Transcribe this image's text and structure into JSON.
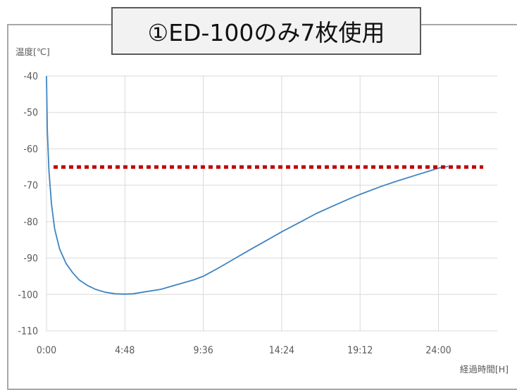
{
  "chart_data": {
    "type": "line",
    "title": "①ED-100のみ7枚使用",
    "xlabel": "経過時間[H]",
    "ylabel": "温度[℃]",
    "x_tick_labels": [
      "0:00",
      "4:48",
      "9:36",
      "14:24",
      "19:12",
      "24:00"
    ],
    "x_ticks_hours": [
      0,
      4.8,
      9.6,
      14.4,
      19.2,
      24.0
    ],
    "y_ticks": [
      -40,
      -50,
      -60,
      -70,
      -80,
      -90,
      -100,
      -110
    ],
    "xlim_hours": [
      0,
      27.6
    ],
    "ylim": [
      -110,
      -40
    ],
    "grid": true,
    "legend": "none",
    "series": [
      {
        "color": "#3f84c0",
        "x_hours": [
          0,
          0.05,
          0.15,
          0.3,
          0.5,
          0.8,
          1.2,
          1.6,
          2.0,
          2.5,
          3.0,
          3.6,
          4.2,
          4.8,
          5.3,
          6.0,
          7.0,
          8.0,
          9.0,
          9.6,
          10.5,
          11.5,
          12.5,
          13.5,
          14.4,
          15.5,
          16.5,
          17.5,
          18.5,
          19.2,
          20.5,
          21.5,
          22.5,
          23.5,
          24.0,
          24.6
        ],
        "values": [
          -40,
          -55,
          -66,
          -75,
          -82,
          -87.5,
          -91.5,
          -94,
          -96,
          -97.5,
          -98.6,
          -99.4,
          -99.8,
          -99.9,
          -99.8,
          -99.3,
          -98.6,
          -97.3,
          -96,
          -95,
          -92.8,
          -90.2,
          -87.6,
          -85.1,
          -82.8,
          -80.2,
          -77.8,
          -75.8,
          -73.8,
          -72.5,
          -70.3,
          -68.8,
          -67.4,
          -66,
          -65.3,
          -64.8
        ]
      }
    ],
    "threshold": {
      "value": -65,
      "color": "#c00000"
    }
  }
}
